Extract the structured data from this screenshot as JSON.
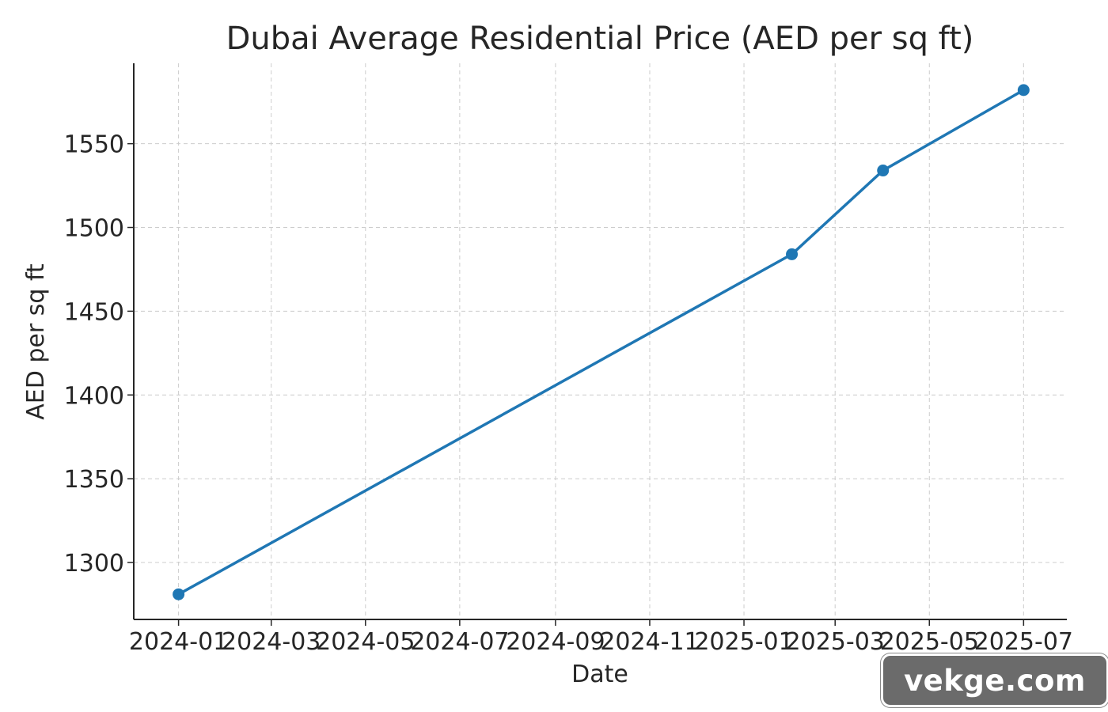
{
  "chart_data": {
    "type": "line",
    "title": "Dubai Average Residential Price (AED per sq ft)",
    "xlabel": "Date",
    "ylabel": "AED per sq ft",
    "x_ticks": [
      "2024-01",
      "2024-03",
      "2024-05",
      "2024-07",
      "2024-09",
      "2024-11",
      "2025-01",
      "2025-03",
      "2025-05",
      "2025-07"
    ],
    "y_ticks": [
      1300,
      1350,
      1400,
      1450,
      1500,
      1550
    ],
    "xlim": [
      "2023-12-03",
      "2025-07-29"
    ],
    "ylim": [
      1266,
      1598
    ],
    "grid": true,
    "series": [
      {
        "color": "#1f77b4",
        "x": [
          "2024-01-01",
          "2025-02-01",
          "2025-04-01",
          "2025-07-01"
        ],
        "values": [
          1281,
          1484,
          1534,
          1582
        ]
      }
    ]
  },
  "watermark": {
    "text": "vekge.com"
  }
}
